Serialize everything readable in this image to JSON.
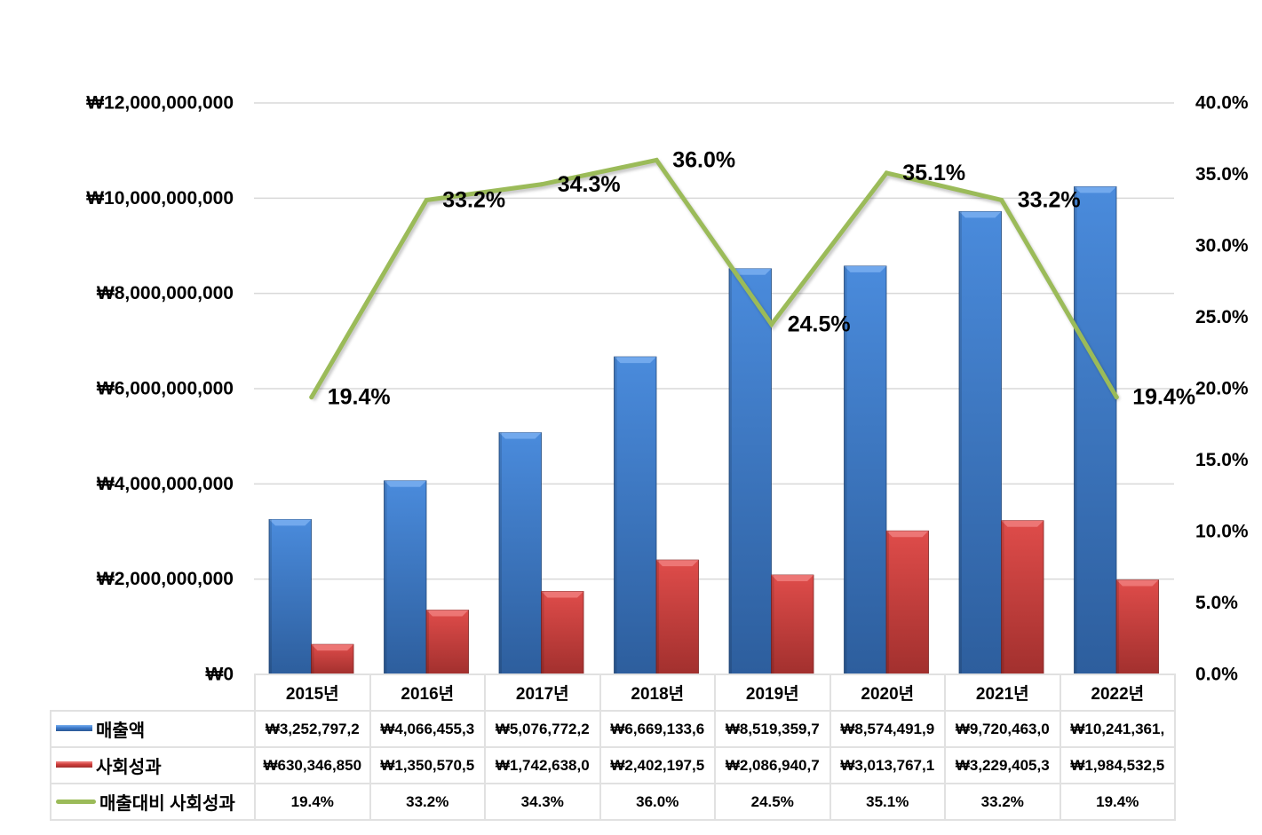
{
  "chart_data": {
    "type": "bar",
    "title": "",
    "categories": [
      "2015년",
      "2016년",
      "2017년",
      "2018년",
      "2019년",
      "2020년",
      "2021년",
      "2022년"
    ],
    "series": [
      {
        "name": "매출액",
        "type": "bar",
        "axis": "primary",
        "color": "#3c7bc9",
        "values": [
          3252797200,
          4066455300,
          5076772200,
          6669133600,
          8519359700,
          8574491900,
          9720463000,
          10241361000
        ]
      },
      {
        "name": "사회성과",
        "type": "bar",
        "axis": "primary",
        "color": "#c9413f",
        "values": [
          630346850,
          1350570500,
          1742638000,
          2402197500,
          2086940700,
          3013767100,
          3229405300,
          1984532500
        ]
      },
      {
        "name": "매출대비 사회성과",
        "type": "line",
        "axis": "secondary",
        "color": "#9bbb59",
        "values": [
          19.4,
          33.2,
          34.3,
          36.0,
          24.5,
          35.1,
          33.2,
          19.4
        ],
        "data_labels": [
          "19.4%",
          "33.2%",
          "34.3%",
          "36.0%",
          "24.5%",
          "35.1%",
          "33.2%",
          "19.4%"
        ]
      }
    ],
    "ylim": [
      0,
      12000000000
    ],
    "y_ticks": [
      {
        "value": 0,
        "label": "₩0"
      },
      {
        "value": 2000000000,
        "label": "₩2,000,000,000"
      },
      {
        "value": 4000000000,
        "label": "₩4,000,000,000"
      },
      {
        "value": 6000000000,
        "label": "₩6,000,000,000"
      },
      {
        "value": 8000000000,
        "label": "₩8,000,000,000"
      },
      {
        "value": 10000000000,
        "label": "₩10,000,000,000"
      },
      {
        "value": 12000000000,
        "label": "₩12,000,000,000"
      }
    ],
    "y2lim": [
      0,
      40
    ],
    "y2_ticks": [
      {
        "value": 0,
        "label": "0.0%"
      },
      {
        "value": 5,
        "label": "5.0%"
      },
      {
        "value": 10,
        "label": "10.0%"
      },
      {
        "value": 15,
        "label": "15.0%"
      },
      {
        "value": 20,
        "label": "20.0%"
      },
      {
        "value": 25,
        "label": "25.0%"
      },
      {
        "value": 30,
        "label": "30.0%"
      },
      {
        "value": 35,
        "label": "35.0%"
      },
      {
        "value": 40,
        "label": "40.0%"
      }
    ],
    "grid": true,
    "legend": "bottom data table",
    "data_table": {
      "rows": [
        {
          "label": "매출액",
          "cells": [
            "₩3,252,797,2",
            "₩4,066,455,3",
            "₩5,076,772,2",
            "₩6,669,133,6",
            "₩8,519,359,7",
            "₩8,574,491,9",
            "₩9,720,463,0",
            "₩10,241,361,"
          ]
        },
        {
          "label": "사회성과",
          "cells": [
            "₩630,346,850",
            "₩1,350,570,5",
            "₩1,742,638,0",
            "₩2,402,197,5",
            "₩2,086,940,7",
            "₩3,013,767,1",
            "₩3,229,405,3",
            "₩1,984,532,5"
          ]
        },
        {
          "label": "매출대비 사회성과",
          "cells": [
            "19.4%",
            "33.2%",
            "34.3%",
            "36.0%",
            "24.5%",
            "35.1%",
            "33.2%",
            "19.4%"
          ]
        }
      ]
    }
  }
}
